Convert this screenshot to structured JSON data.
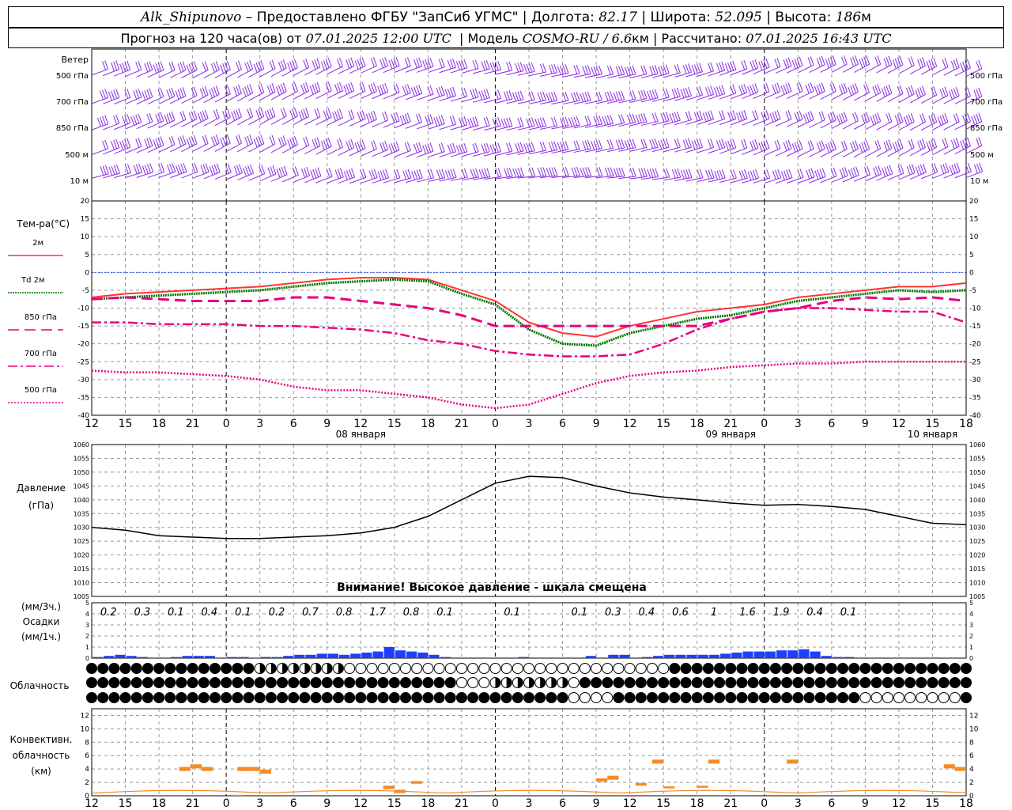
{
  "header": {
    "station": "Alk_Shipunovo",
    "provider": "Предоставлено ФГБУ \"ЗапСиб УГМС\"",
    "lon_label": "Долгота:",
    "lon": "82.17",
    "lat_label": "Широта:",
    "lat": "52.095",
    "alt_label": "Высота:",
    "alt": "186",
    "alt_unit": "м",
    "forecast_prefix": "Прогноз на 120 часа(ов) от",
    "forecast_start": "07.01.2025 12:00 UTC",
    "model_label": "Модель",
    "model": "COSMO-RU / 6.6",
    "model_unit": "км",
    "computed_label": "Рассчитано:",
    "computed": "07.01.2025 16:43 UTC"
  },
  "time_axis": {
    "hour_labels": [
      "12",
      "15",
      "18",
      "21",
      "0",
      "3",
      "6",
      "9",
      "12",
      "15",
      "18",
      "21",
      "0",
      "3",
      "6",
      "9",
      "12",
      "15",
      "18",
      "21",
      "0",
      "3",
      "6",
      "9",
      "12",
      "15",
      "18"
    ],
    "day_labels": [
      "08 января",
      "09 января",
      "10 января"
    ]
  },
  "wind": {
    "title": "Ветер",
    "levels": [
      "500 гПа",
      "700 гПа",
      "850 гПа",
      "500 м",
      "10 м"
    ],
    "color": "#8a2be2"
  },
  "temperature": {
    "title": "Тем-ра(°C)",
    "yticks": [
      20,
      15,
      10,
      5,
      0,
      -5,
      -10,
      -15,
      -20,
      -25,
      -30,
      -35,
      -40
    ],
    "legend": [
      {
        "label": "2м",
        "color": "#ff3333"
      },
      {
        "label": "Td 2м",
        "color": "#007700"
      },
      {
        "label": "850 гПа",
        "color": "#e6007e"
      },
      {
        "label": "700 гПа",
        "color": "#e6007e"
      },
      {
        "label": "500 гПа",
        "color": "#e6007e"
      }
    ]
  },
  "pressure": {
    "title": "Давление",
    "unit": "(гПа)",
    "yticks": [
      1060,
      1055,
      1050,
      1045,
      1040,
      1035,
      1030,
      1025,
      1020,
      1015,
      1010,
      1005
    ],
    "warning": "Внимание! Высокое давление - шкала смещена"
  },
  "precip": {
    "unit3": "(мм/3ч.)",
    "title": "Осадки",
    "unit1": "(мм/1ч.)",
    "yticks": [
      5,
      4,
      3,
      2,
      1,
      0
    ],
    "totals3h": [
      {
        "hour": 1.5,
        "v": "0.2"
      },
      {
        "hour": 4.5,
        "v": "0.3"
      },
      {
        "hour": 7.5,
        "v": "0.1"
      },
      {
        "hour": 10.5,
        "v": "0.4"
      },
      {
        "hour": 13.5,
        "v": "0.1"
      },
      {
        "hour": 16.5,
        "v": "0.2"
      },
      {
        "hour": 19.5,
        "v": "0.7"
      },
      {
        "hour": 22.5,
        "v": "0.8"
      },
      {
        "hour": 25.5,
        "v": "1.7"
      },
      {
        "hour": 28.5,
        "v": "0.8"
      },
      {
        "hour": 31.5,
        "v": "0.1"
      },
      {
        "hour": 37.5,
        "v": "0.1"
      },
      {
        "hour": 43.5,
        "v": "0.1"
      },
      {
        "hour": 46.5,
        "v": "0.3"
      },
      {
        "hour": 49.5,
        "v": "0.4"
      },
      {
        "hour": 52.5,
        "v": "0.6"
      },
      {
        "hour": 55.5,
        "v": "1"
      },
      {
        "hour": 58.5,
        "v": "1.6"
      },
      {
        "hour": 61.5,
        "v": "1.9"
      },
      {
        "hour": 64.5,
        "v": "0.4"
      },
      {
        "hour": 67.5,
        "v": "0.1"
      }
    ]
  },
  "cloud": {
    "title": "Облачность"
  },
  "convective": {
    "title1": "Конвективн.",
    "title2": "облачность",
    "unit": "(км)",
    "yticks": [
      12,
      10,
      8,
      6,
      4,
      2,
      0
    ]
  },
  "chart_data": [
    {
      "type": "line",
      "title": "Тем-ра(°C)",
      "x_hours_from_start": [
        0,
        3,
        6,
        9,
        12,
        15,
        18,
        21,
        24,
        27,
        30,
        33,
        36,
        39,
        42,
        45,
        48,
        51,
        54,
        57,
        60,
        63,
        66,
        69,
        72,
        75,
        78
      ],
      "ylim": [
        -40,
        20
      ],
      "series": [
        {
          "name": "2м",
          "values": [
            -7,
            -6,
            -5.5,
            -5,
            -4.5,
            -4,
            -3,
            -2,
            -1.5,
            -1.5,
            -2,
            -5,
            -8,
            -14,
            -17,
            -18,
            -15,
            -13,
            -11,
            -10,
            -9,
            -7,
            -6,
            -5,
            -4,
            -4,
            -3
          ]
        },
        {
          "name": "Td 2м",
          "values": [
            -7.5,
            -7,
            -6.5,
            -6,
            -5.5,
            -5,
            -4,
            -3,
            -2.5,
            -2,
            -2.5,
            -6,
            -9,
            -16,
            -20,
            -20.5,
            -17,
            -15,
            -13,
            -12,
            -10,
            -8,
            -7,
            -6,
            -5,
            -5.5,
            -5
          ]
        },
        {
          "name": "850 гПа",
          "values": [
            -7.5,
            -7,
            -7.5,
            -8,
            -8,
            -8,
            -7,
            -7,
            -8,
            -9,
            -10,
            -12,
            -15,
            -15,
            -15,
            -15,
            -15,
            -15,
            -15,
            -13,
            -11,
            -10,
            -8,
            -7,
            -7.5,
            -7,
            -8
          ]
        },
        {
          "name": "700 гПа",
          "values": [
            -14,
            -14,
            -14.5,
            -14.5,
            -14.5,
            -15,
            -15,
            -15.5,
            -16,
            -17,
            -19,
            -20,
            -22,
            -23,
            -23.5,
            -23.5,
            -23,
            -20,
            -16,
            -13,
            -11,
            -10,
            -10,
            -10.5,
            -11,
            -11,
            -14
          ]
        },
        {
          "name": "500 гПа",
          "values": [
            -27.5,
            -28,
            -28,
            -28.5,
            -29,
            -30,
            -32,
            -33,
            -33,
            -34,
            -35,
            -37,
            -38,
            -37,
            -34,
            -31,
            -29,
            -28,
            -27.5,
            -26.5,
            -26,
            -25.5,
            -25.5,
            -25,
            -25,
            -25,
            -25
          ]
        }
      ]
    },
    {
      "type": "line",
      "title": "Давление",
      "x_hours_from_start": [
        0,
        3,
        6,
        9,
        12,
        15,
        18,
        21,
        24,
        27,
        30,
        33,
        36,
        39,
        42,
        45,
        48,
        51,
        54,
        57,
        60,
        63,
        66,
        69,
        72,
        75,
        78
      ],
      "ylim": [
        1005,
        1060
      ],
      "series": [
        {
          "name": "Давление",
          "values": [
            1030,
            1029,
            1027,
            1026.5,
            1026,
            1026,
            1026.5,
            1027,
            1028,
            1030,
            1034,
            1040,
            1046,
            1048.5,
            1048,
            1045,
            1042.5,
            1041,
            1040,
            1038.8,
            1038,
            1038.3,
            1037.6,
            1036.5,
            1034,
            1031.5,
            1031
          ]
        }
      ]
    },
    {
      "type": "bar",
      "title": "Осадки",
      "x_hours_from_start": [
        1,
        2,
        3,
        4,
        5,
        6,
        7,
        8,
        9,
        10,
        11,
        12,
        13,
        14,
        15,
        16,
        17,
        18,
        19,
        20,
        21,
        22,
        23,
        24,
        25,
        26,
        27,
        28,
        29,
        30,
        31,
        32,
        33,
        34,
        35,
        36,
        37,
        38,
        39,
        40,
        41,
        42,
        43,
        44,
        45,
        46,
        47,
        48,
        49,
        50,
        51,
        52,
        53,
        54,
        55,
        56,
        57,
        58,
        59,
        60,
        61,
        62,
        63,
        64,
        65,
        66,
        67,
        68,
        69,
        70,
        71,
        72,
        73,
        74,
        75,
        76,
        77,
        78
      ],
      "ylim": [
        0,
        5
      ],
      "values": [
        0.1,
        0.2,
        0.3,
        0.2,
        0.1,
        0,
        0,
        0.1,
        0.2,
        0.2,
        0.2,
        0,
        0.1,
        0.1,
        0,
        0.1,
        0.1,
        0.2,
        0.3,
        0.3,
        0.4,
        0.4,
        0.3,
        0.4,
        0.5,
        0.6,
        1,
        0.7,
        0.6,
        0.5,
        0.3,
        0.1,
        0,
        0,
        0,
        0,
        0,
        0,
        0.1,
        0,
        0,
        0,
        0,
        0,
        0.2,
        0,
        0.3,
        0.3,
        0,
        0.1,
        0.2,
        0.3,
        0.3,
        0.3,
        0.3,
        0.3,
        0.4,
        0.5,
        0.6,
        0.6,
        0.6,
        0.7,
        0.7,
        0.8,
        0.6,
        0.2,
        0.1,
        0.1,
        0,
        0,
        0,
        0,
        0,
        0,
        0,
        0,
        0,
        0
      ]
    },
    {
      "type": "bar",
      "title": "Конвективн. облачность",
      "ylim": [
        0,
        13
      ],
      "bars": [
        {
          "x0": 7.8,
          "x1": 8.8,
          "base": 3.7,
          "top": 4.3
        },
        {
          "x0": 8.8,
          "x1": 9.8,
          "base": 4.1,
          "top": 4.7
        },
        {
          "x0": 9.8,
          "x1": 10.8,
          "base": 3.7,
          "top": 4.3
        },
        {
          "x0": 12.5,
          "x1": 13.5,
          "base": 0,
          "top": 0.15
        },
        {
          "x0": 13.0,
          "x1": 14.0,
          "base": 3.7,
          "top": 4.3
        },
        {
          "x0": 14.0,
          "x1": 15.0,
          "base": 3.7,
          "top": 4.3
        },
        {
          "x0": 15.0,
          "x1": 16.0,
          "base": 3.3,
          "top": 3.9
        },
        {
          "x0": 26.0,
          "x1": 27.0,
          "base": 1.0,
          "top": 1.5
        },
        {
          "x0": 27.0,
          "x1": 28.0,
          "base": 0.4,
          "top": 0.9
        },
        {
          "x0": 28.5,
          "x1": 29.5,
          "base": 1.8,
          "top": 2.2
        },
        {
          "x0": 45.0,
          "x1": 46.0,
          "base": 2.1,
          "top": 2.6
        },
        {
          "x0": 46.0,
          "x1": 47.0,
          "base": 2.4,
          "top": 3.0
        },
        {
          "x0": 48.5,
          "x1": 49.5,
          "base": 1.5,
          "top": 1.9
        },
        {
          "x0": 50.0,
          "x1": 51.0,
          "base": 4.8,
          "top": 5.4
        },
        {
          "x0": 51.0,
          "x1": 52.0,
          "base": 1.1,
          "top": 1.4
        },
        {
          "x0": 54.0,
          "x1": 55.0,
          "base": 1.2,
          "top": 1.5
        },
        {
          "x0": 55.0,
          "x1": 56.0,
          "base": 4.8,
          "top": 5.4
        },
        {
          "x0": 62.0,
          "x1": 63.0,
          "base": 4.8,
          "top": 5.4
        },
        {
          "x0": 76.0,
          "x1": 77.0,
          "base": 4.1,
          "top": 4.7
        },
        {
          "x0": 77.0,
          "x1": 78.0,
          "base": 3.7,
          "top": 4.3
        }
      ]
    }
  ]
}
